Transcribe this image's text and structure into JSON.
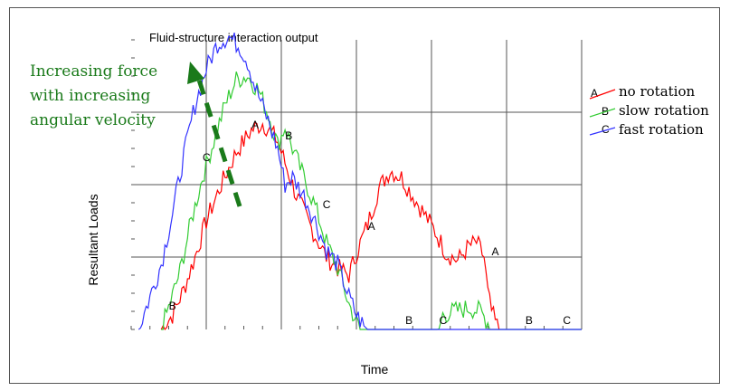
{
  "chart_data": {
    "type": "line",
    "title": "Fluid-structure interaction output",
    "xlabel": "Time",
    "ylabel": "Resultant Loads",
    "x_range": [
      0,
      6
    ],
    "y_range": [
      0,
      4
    ],
    "grid": true,
    "legend_position": "right",
    "annotation": {
      "lines": [
        "Increasing force",
        "with increasing",
        "angular velocity"
      ],
      "color": "#1a7a1a"
    },
    "series": [
      {
        "name": "no rotation",
        "marker": "A",
        "color": "#ff0000",
        "x": [
          0.4,
          0.55,
          0.7,
          0.85,
          1.0,
          1.2,
          1.4,
          1.6,
          1.75,
          1.85,
          1.95,
          2.05,
          2.2,
          2.4,
          2.6,
          2.75,
          2.9,
          3.0,
          3.15,
          3.3,
          3.45,
          3.6,
          3.75,
          3.9,
          4.05,
          4.2,
          4.35,
          4.5,
          4.6,
          4.7,
          4.75,
          4.8,
          4.85,
          4.9
        ],
        "y": [
          0.0,
          0.2,
          0.55,
          1.0,
          1.5,
          2.0,
          2.45,
          2.75,
          2.85,
          2.75,
          2.6,
          2.3,
          1.85,
          1.4,
          1.0,
          0.85,
          0.75,
          1.05,
          1.45,
          1.95,
          2.2,
          2.1,
          1.85,
          1.6,
          1.35,
          1.05,
          0.95,
          1.15,
          1.2,
          1.0,
          0.5,
          0.25,
          0.1,
          0.0
        ]
      },
      {
        "name": "slow rotation",
        "marker": "B",
        "color": "#33cc33",
        "x": [
          0.4,
          0.5,
          0.65,
          0.8,
          0.95,
          1.1,
          1.25,
          1.4,
          1.55,
          1.7,
          1.85,
          1.95,
          2.05,
          2.15,
          2.3,
          2.45,
          2.6,
          2.75,
          2.9,
          3.0,
          3.05,
          3.1,
          3.6,
          4.1,
          4.15,
          4.3,
          4.5,
          4.65,
          4.75,
          4.8,
          5.0,
          6.0
        ],
        "y": [
          0.0,
          0.3,
          0.8,
          1.5,
          2.1,
          2.6,
          3.1,
          3.45,
          3.5,
          3.3,
          2.9,
          2.55,
          2.8,
          2.5,
          2.1,
          1.7,
          1.2,
          0.85,
          0.35,
          0.1,
          0.0,
          0.0,
          0.0,
          0.0,
          0.2,
          0.25,
          0.3,
          0.25,
          0.1,
          0.0,
          0.0,
          0.0
        ]
      },
      {
        "name": "fast rotation",
        "marker": "C",
        "color": "#3333ff",
        "x": [
          0.1,
          0.25,
          0.4,
          0.55,
          0.7,
          0.85,
          1.0,
          1.15,
          1.3,
          1.45,
          1.55,
          1.65,
          1.8,
          1.95,
          2.05,
          2.15,
          2.3,
          2.45,
          2.6,
          2.75,
          2.9,
          3.0,
          3.1,
          3.15,
          6.0
        ],
        "y": [
          0.0,
          0.45,
          0.9,
          1.6,
          2.4,
          3.1,
          3.6,
          3.95,
          4.05,
          3.9,
          3.7,
          3.35,
          2.95,
          2.5,
          2.0,
          2.1,
          1.85,
          1.5,
          1.1,
          0.9,
          0.45,
          0.2,
          0.05,
          0.0,
          0.0
        ]
      }
    ],
    "curve_labels": [
      {
        "series": "A",
        "x": 1.65,
        "y": 2.75
      },
      {
        "series": "A",
        "x": 3.2,
        "y": 1.35
      },
      {
        "series": "A",
        "x": 4.85,
        "y": 1.0
      },
      {
        "series": "B",
        "x": 0.55,
        "y": 0.25
      },
      {
        "series": "B",
        "x": 2.1,
        "y": 2.6
      },
      {
        "series": "B",
        "x": 3.7,
        "y": 0.05
      },
      {
        "series": "B",
        "x": 5.3,
        "y": 0.05
      },
      {
        "series": "C",
        "x": 1.0,
        "y": 2.3
      },
      {
        "series": "C",
        "x": 2.6,
        "y": 1.65
      },
      {
        "series": "C",
        "x": 4.15,
        "y": 0.05
      },
      {
        "series": "C",
        "x": 5.8,
        "y": 0.05
      }
    ]
  }
}
